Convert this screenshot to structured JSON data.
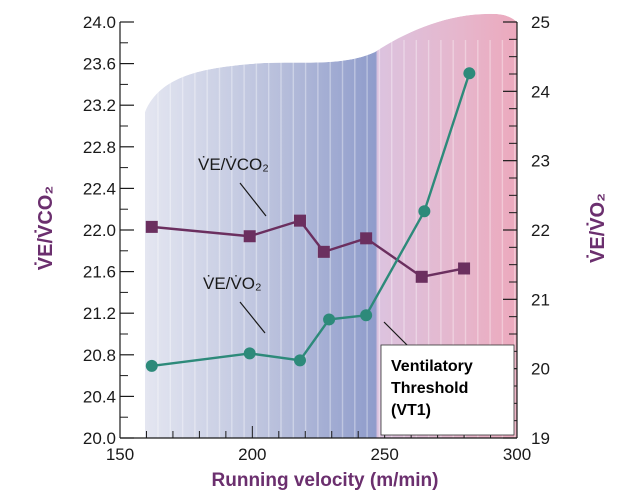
{
  "chart_data": {
    "type": "line",
    "xlabel": "Running velocity (m/min)",
    "ylabel_left": "V̇E/V̇CO₂",
    "ylabel_right": "V̇E/V̇O₂",
    "xlim": [
      150,
      300
    ],
    "ylim_left": [
      20.0,
      24.0
    ],
    "ylim_right": [
      19,
      25
    ],
    "x_ticks": [
      "150",
      "200",
      "250",
      "300"
    ],
    "y_ticks_left": [
      "20.0",
      "20.4",
      "20.8",
      "21.2",
      "21.6",
      "22.0",
      "22.4",
      "22.8",
      "23.2",
      "23.6",
      "24.0"
    ],
    "y_ticks_right": [
      "19",
      "20",
      "21",
      "22",
      "23",
      "24",
      "25"
    ],
    "series": [
      {
        "name": "V̇E/V̇CO₂",
        "axis": "left",
        "marker": "square",
        "color": "#6b2f5f",
        "x": [
          162,
          199,
          218,
          227,
          243,
          264,
          280
        ],
        "y": [
          22.03,
          21.94,
          22.09,
          21.79,
          21.92,
          21.55,
          21.63
        ]
      },
      {
        "name": "V̇E/V̇O₂",
        "axis": "right",
        "marker": "circle",
        "color": "#2d8a7a",
        "x": [
          162,
          199,
          218,
          229,
          243,
          265,
          282
        ],
        "y": [
          20.04,
          20.22,
          20.12,
          20.71,
          20.77,
          22.27,
          24.26
        ]
      }
    ],
    "annotations": [
      {
        "text_line1": "Ventilatory",
        "text_line2": "Threshold",
        "text_line3": "(VT1)"
      }
    ],
    "colors": {
      "background_blue": "#8e9cc8",
      "background_pink": "#e8a9c0",
      "axis_title": "#6b2f6e"
    },
    "grid": false
  }
}
